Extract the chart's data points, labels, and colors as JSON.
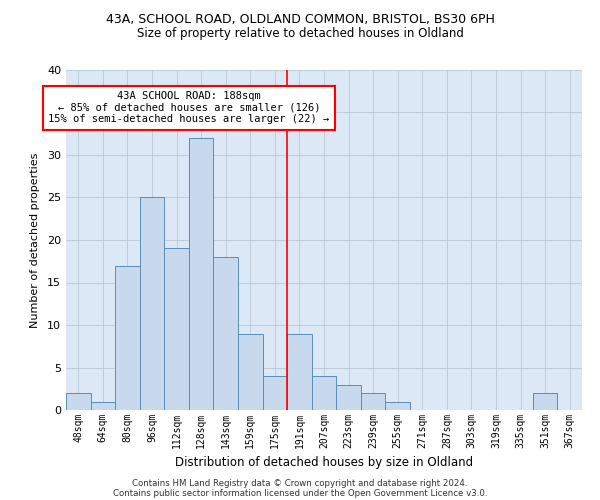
{
  "title1": "43A, SCHOOL ROAD, OLDLAND COMMON, BRISTOL, BS30 6PH",
  "title2": "Size of property relative to detached houses in Oldland",
  "xlabel": "Distribution of detached houses by size in Oldland",
  "ylabel": "Number of detached properties",
  "bins": [
    "48sqm",
    "64sqm",
    "80sqm",
    "96sqm",
    "112sqm",
    "128sqm",
    "143sqm",
    "159sqm",
    "175sqm",
    "191sqm",
    "207sqm",
    "223sqm",
    "239sqm",
    "255sqm",
    "271sqm",
    "287sqm",
    "303sqm",
    "319sqm",
    "335sqm",
    "351sqm",
    "367sqm"
  ],
  "counts": [
    2,
    1,
    17,
    25,
    19,
    32,
    18,
    9,
    4,
    9,
    4,
    3,
    2,
    1,
    0,
    0,
    0,
    0,
    0,
    2,
    0
  ],
  "bar_color": "#c9d9ed",
  "bar_edge_color": "#5b8db8",
  "grid_color": "#b8c8d8",
  "vline_color": "red",
  "annotation_text": "43A SCHOOL ROAD: 188sqm\n← 85% of detached houses are smaller (126)\n15% of semi-detached houses are larger (22) →",
  "footnote1": "Contains HM Land Registry data © Crown copyright and database right 2024.",
  "footnote2": "Contains public sector information licensed under the Open Government Licence v3.0.",
  "ylim": [
    0,
    40
  ],
  "yticks": [
    0,
    5,
    10,
    15,
    20,
    25,
    30,
    35,
    40
  ],
  "bg_color": "#dce8f5",
  "vline_idx": 8.5
}
